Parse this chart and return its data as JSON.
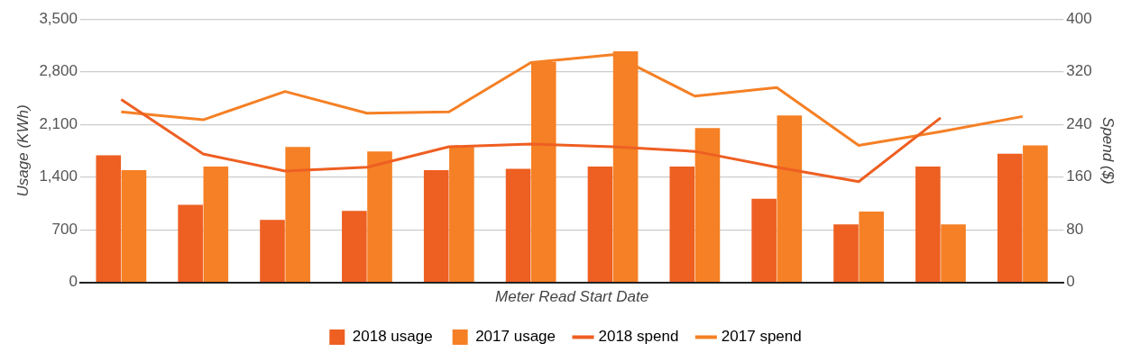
{
  "chart_data": {
    "type": "bar",
    "xlabel": "Meter Read Start Date",
    "ylabel": "Usage (KWh)",
    "y2label": "Spend ($)",
    "categories": [
      null,
      null,
      null,
      null,
      null,
      null,
      null,
      null,
      null,
      null,
      null,
      null
    ],
    "series": [
      {
        "name": "2018 usage",
        "color": "#ee5f22",
        "values": [
          1690,
          1030,
          830,
          950,
          1490,
          1510,
          1540,
          1540,
          1110,
          770,
          1540,
          1710
        ]
      },
      {
        "name": "2017 usage",
        "color": "#f58025",
        "values": [
          1490,
          1540,
          1800,
          1740,
          1800,
          2930,
          3070,
          2050,
          2220,
          940,
          770,
          1820
        ]
      },
      {
        "name": "2018 spend",
        "type": "line",
        "axis": "y2",
        "color": "#ee5f22",
        "values": [
          278,
          195,
          169,
          175,
          206,
          210,
          206,
          199,
          175,
          153,
          250,
          null
        ]
      },
      {
        "name": "2017 spend",
        "type": "line",
        "axis": "y2",
        "color": "#f58025",
        "values": [
          259,
          247,
          290,
          257,
          259,
          334,
          346,
          283,
          296,
          208,
          229,
          252
        ]
      }
    ],
    "ylim": [
      0,
      3500
    ],
    "yticks": [
      0,
      {
        "value": 700,
        "label": "700"
      },
      {
        "value": 1400,
        "label": "1,400"
      },
      {
        "value": 2100,
        "label": "2,100"
      },
      {
        "value": 2800,
        "label": "2,800"
      },
      {
        "value": 3500,
        "label": "3,500"
      }
    ],
    "y2lim": [
      0,
      400
    ],
    "y2ticks": [
      0,
      80,
      160,
      240,
      320,
      400
    ],
    "grid": "y",
    "legend": "bottom",
    "marker": "none",
    "line_style": "solid",
    "tick_labels": "y"
  }
}
